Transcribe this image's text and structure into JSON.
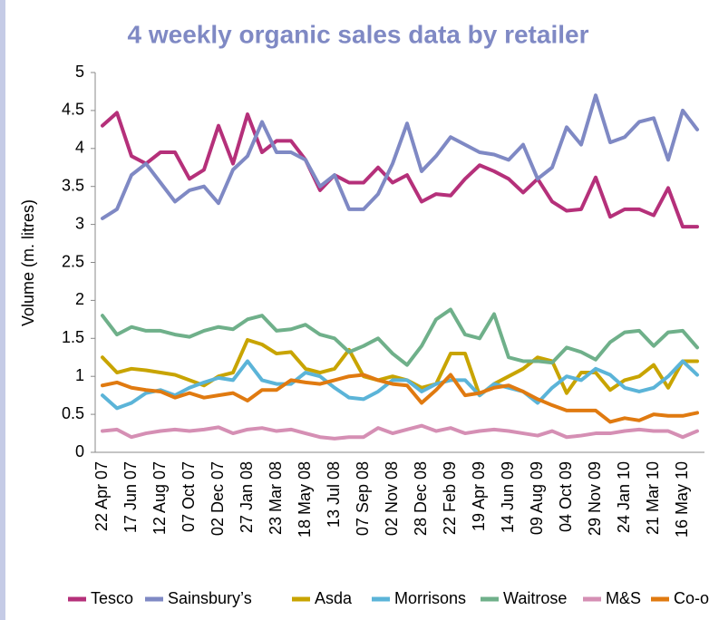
{
  "chart_data": {
    "type": "line",
    "title": "4 weekly organic sales data by retailer",
    "y_label": "Volume (m. litres)",
    "categories": [
      "22 Apr 07",
      null,
      "17 Jun 07",
      null,
      "12 Aug 07",
      null,
      "07 Oct 07",
      null,
      "02 Dec 07",
      null,
      "27 Jan 08",
      null,
      "23 Mar 08",
      null,
      "18 May 08",
      null,
      "13 Jul 08",
      null,
      "07 Sep 08",
      null,
      "02 Nov 08",
      null,
      "28 Dec 08",
      null,
      "22 Feb 09",
      null,
      "19 Apr 09",
      null,
      "14 Jun 09",
      null,
      "09 Aug 09",
      null,
      "04 Oct 09",
      null,
      "29 Nov 09",
      null,
      "24 Jan 10",
      null,
      "21 Mar 10",
      null,
      "16 May 10",
      null
    ],
    "ylim": [
      0,
      5
    ],
    "yticks": [
      0,
      0.5,
      1,
      1.5,
      2,
      2.5,
      3,
      3.5,
      4,
      4.5,
      5
    ],
    "grid": false,
    "legend": "bottom",
    "series": [
      {
        "name": "Tesco",
        "color": "#b5307a",
        "values": [
          4.3,
          4.47,
          3.9,
          3.8,
          3.95,
          3.95,
          3.6,
          3.72,
          4.3,
          3.8,
          4.45,
          3.95,
          4.1,
          4.1,
          3.85,
          3.45,
          3.65,
          3.55,
          3.55,
          3.75,
          3.55,
          3.65,
          3.3,
          3.4,
          3.38,
          3.6,
          3.78,
          3.7,
          3.6,
          3.42,
          3.6,
          3.3,
          3.18,
          3.2,
          3.62,
          3.1,
          3.2,
          3.2,
          3.12,
          3.48,
          2.97,
          2.97
        ]
      },
      {
        "name": "Sainsbury’s",
        "color": "#7f89c4",
        "values": [
          3.08,
          3.2,
          3.65,
          3.8,
          3.55,
          3.3,
          3.45,
          3.5,
          3.28,
          3.72,
          3.9,
          4.35,
          3.95,
          3.95,
          3.85,
          3.5,
          3.65,
          3.2,
          3.2,
          3.4,
          3.8,
          4.33,
          3.7,
          3.9,
          4.15,
          4.05,
          3.95,
          3.92,
          3.85,
          4.05,
          3.6,
          3.75,
          4.28,
          4.05,
          4.7,
          4.08,
          4.15,
          4.35,
          4.4,
          3.85,
          4.5,
          4.25
        ]
      },
      {
        "name": "Asda",
        "color": "#c8a400",
        "values": [
          1.25,
          1.05,
          1.1,
          1.08,
          1.05,
          1.02,
          0.95,
          0.88,
          1.0,
          1.05,
          1.48,
          1.42,
          1.3,
          1.32,
          1.1,
          1.05,
          1.1,
          1.35,
          1.0,
          0.95,
          1.0,
          0.95,
          0.85,
          0.9,
          1.3,
          1.3,
          0.75,
          0.9,
          1.0,
          1.1,
          1.25,
          1.2,
          0.78,
          1.05,
          1.05,
          0.82,
          0.95,
          1.0,
          1.15,
          0.85,
          1.2,
          1.2
        ]
      },
      {
        "name": "Morrisons",
        "color": "#5bb4d8",
        "values": [
          0.75,
          0.58,
          0.65,
          0.78,
          0.82,
          0.75,
          0.85,
          0.92,
          0.98,
          0.95,
          1.2,
          0.95,
          0.9,
          0.9,
          1.05,
          1.0,
          0.85,
          0.72,
          0.7,
          0.8,
          0.95,
          0.95,
          0.8,
          0.9,
          0.95,
          0.95,
          0.75,
          0.9,
          0.85,
          0.8,
          0.65,
          0.85,
          1.0,
          0.95,
          1.1,
          1.02,
          0.85,
          0.8,
          0.85,
          1.0,
          1.2,
          1.02
        ]
      },
      {
        "name": "Waitrose",
        "color": "#6fb08a",
        "values": [
          1.8,
          1.55,
          1.65,
          1.6,
          1.6,
          1.55,
          1.52,
          1.6,
          1.65,
          1.62,
          1.75,
          1.8,
          1.6,
          1.62,
          1.68,
          1.55,
          1.5,
          1.32,
          1.4,
          1.5,
          1.3,
          1.15,
          1.4,
          1.75,
          1.88,
          1.55,
          1.5,
          1.82,
          1.25,
          1.2,
          1.2,
          1.18,
          1.38,
          1.32,
          1.22,
          1.45,
          1.58,
          1.6,
          1.4,
          1.58,
          1.6,
          1.38
        ]
      },
      {
        "name": "M&S",
        "color": "#d58fb4",
        "values": [
          0.28,
          0.3,
          0.2,
          0.25,
          0.28,
          0.3,
          0.28,
          0.3,
          0.33,
          0.25,
          0.3,
          0.32,
          0.28,
          0.3,
          0.25,
          0.2,
          0.18,
          0.2,
          0.2,
          0.32,
          0.25,
          0.3,
          0.35,
          0.28,
          0.32,
          0.25,
          0.28,
          0.3,
          0.28,
          0.25,
          0.22,
          0.28,
          0.2,
          0.22,
          0.25,
          0.25,
          0.28,
          0.3,
          0.28,
          0.28,
          0.2,
          0.28
        ]
      },
      {
        "name": "Co-op",
        "color": "#e07a10",
        "values": [
          0.88,
          0.92,
          0.85,
          0.82,
          0.8,
          0.72,
          0.78,
          0.72,
          0.75,
          0.78,
          0.68,
          0.82,
          0.82,
          0.95,
          0.92,
          0.9,
          0.95,
          1.0,
          1.02,
          0.95,
          0.9,
          0.88,
          0.65,
          0.82,
          1.02,
          0.75,
          0.78,
          0.85,
          0.88,
          0.8,
          0.7,
          0.62,
          0.55,
          0.55,
          0.55,
          0.4,
          0.45,
          0.42,
          0.5,
          0.48,
          0.48,
          0.52
        ]
      }
    ]
  }
}
